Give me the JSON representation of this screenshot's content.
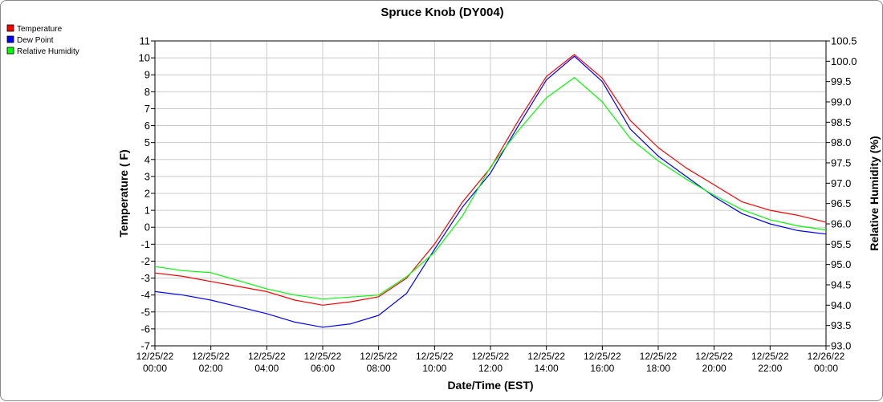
{
  "chart_data": {
    "type": "line",
    "title": "Spruce Knob (DY004)",
    "xlabel": "Date/Time (EST)",
    "ylabel_left": "Temperature ( F)",
    "ylabel_right": "Relative Humidity (%)",
    "ylim_left": [
      -7,
      11
    ],
    "ylim_right": [
      93.0,
      100.5
    ],
    "grid": true,
    "legend_position": "top-left",
    "x_ticks": [
      [
        "12/25/22",
        "00:00"
      ],
      [
        "12/25/22",
        "02:00"
      ],
      [
        "12/25/22",
        "04:00"
      ],
      [
        "12/25/22",
        "06:00"
      ],
      [
        "12/25/22",
        "08:00"
      ],
      [
        "12/25/22",
        "10:00"
      ],
      [
        "12/25/22",
        "12:00"
      ],
      [
        "12/25/22",
        "14:00"
      ],
      [
        "12/25/22",
        "16:00"
      ],
      [
        "12/25/22",
        "18:00"
      ],
      [
        "12/25/22",
        "20:00"
      ],
      [
        "12/25/22",
        "22:00"
      ],
      [
        "12/26/22",
        "00:00"
      ]
    ],
    "y_ticks_left": [
      "-7",
      "-6",
      "-5",
      "-4",
      "-3",
      "-2",
      "-1",
      "0",
      "1",
      "2",
      "3",
      "4",
      "5",
      "6",
      "7",
      "8",
      "9",
      "10",
      "11"
    ],
    "y_ticks_right": [
      "93.0",
      "93.5",
      "94.0",
      "94.5",
      "95.0",
      "95.5",
      "96.0",
      "96.5",
      "97.0",
      "97.5",
      "98.0",
      "98.5",
      "99.0",
      "99.5",
      "100.0",
      "100.5"
    ],
    "x_hours": [
      0,
      1,
      2,
      3,
      4,
      5,
      6,
      7,
      8,
      9,
      10,
      11,
      12,
      13,
      14,
      15,
      16,
      17,
      18,
      19,
      20,
      21,
      22,
      23,
      24
    ],
    "series": [
      {
        "name": "Temperature",
        "axis": "left",
        "color": "#ff0000",
        "values": [
          -2.7,
          -2.9,
          -3.2,
          -3.5,
          -3.8,
          -4.3,
          -4.6,
          -4.4,
          -4.1,
          -3.0,
          -1.0,
          1.5,
          3.5,
          6.3,
          8.9,
          10.2,
          8.8,
          6.3,
          4.7,
          3.5,
          2.5,
          1.5,
          1.0,
          0.7,
          0.3
        ]
      },
      {
        "name": "Dew Point",
        "axis": "left",
        "color": "#0000ff",
        "values": [
          -3.8,
          -4.0,
          -4.3,
          -4.7,
          -5.1,
          -5.6,
          -5.9,
          -5.7,
          -5.2,
          -3.9,
          -1.3,
          1.2,
          3.2,
          6.0,
          8.7,
          10.1,
          8.6,
          5.8,
          4.2,
          3.0,
          1.8,
          0.8,
          0.2,
          -0.2,
          -0.4
        ]
      },
      {
        "name": "Relative Humidity",
        "axis": "right",
        "color": "#00ff00",
        "values": [
          94.95,
          94.85,
          94.8,
          94.6,
          94.4,
          94.25,
          94.15,
          94.2,
          94.25,
          94.7,
          95.3,
          96.2,
          97.4,
          98.3,
          99.1,
          99.6,
          99.0,
          98.1,
          97.55,
          97.1,
          96.7,
          96.35,
          96.1,
          95.95,
          95.85
        ]
      }
    ]
  }
}
